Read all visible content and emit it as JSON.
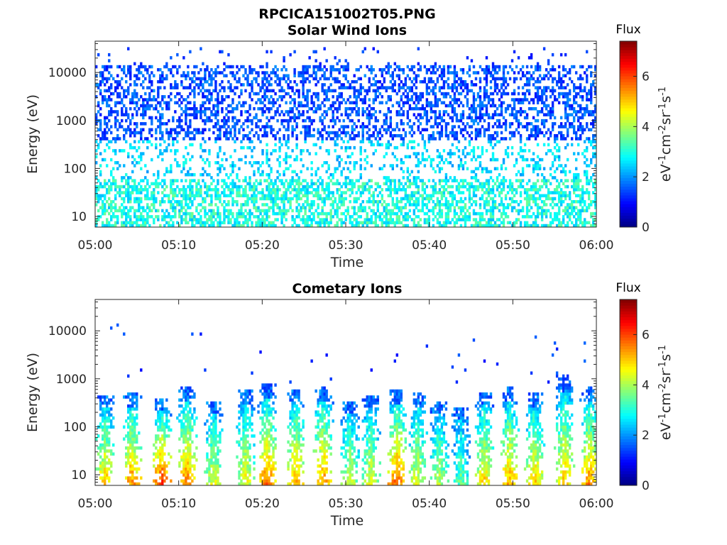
{
  "figure": {
    "filename_title": "RPCICA151002T05.PNG"
  },
  "chart_data": [
    {
      "type": "heatmap",
      "title": "Solar Wind Ions",
      "xlabel": "Time",
      "ylabel": "Energy (eV)",
      "x_ticks": [
        "05:00",
        "05:10",
        "05:20",
        "05:30",
        "05:40",
        "05:50",
        "06:00"
      ],
      "x_range_minutes": [
        0,
        60
      ],
      "y_scale": "log",
      "y_ticks": [
        10,
        100,
        1000,
        10000
      ],
      "y_tick_labels": [
        "10",
        "100",
        "1000",
        "10000"
      ],
      "y_range": [
        6,
        45000
      ],
      "colorbar": {
        "title": "Flux",
        "label": "eV-1cm-2sr-1s-1",
        "min": 0,
        "max": 7.4,
        "ticks": [
          0,
          2,
          4,
          6
        ],
        "tick_labels": [
          "0",
          "2",
          "4",
          "6"
        ],
        "colormap": "jet"
      },
      "description_bands": [
        {
          "energy_range": [
            6,
            60
          ],
          "flux_range": [
            2.3,
            3.6
          ],
          "coverage": 0.55
        },
        {
          "energy_range": [
            60,
            400
          ],
          "flux_range": [
            2.0,
            3.0
          ],
          "coverage": 0.22
        },
        {
          "energy_range": [
            400,
            15000
          ],
          "flux_range": [
            1.0,
            2.0
          ],
          "coverage": 0.42
        },
        {
          "energy_range": [
            15000,
            35000
          ],
          "flux_range": [
            1.0,
            1.6
          ],
          "coverage": 0.04
        }
      ]
    },
    {
      "type": "heatmap",
      "title": "Cometary Ions",
      "xlabel": "Time",
      "ylabel": "Energy (eV)",
      "x_ticks": [
        "05:00",
        "05:10",
        "05:20",
        "05:30",
        "05:40",
        "05:50",
        "06:00"
      ],
      "x_range_minutes": [
        0,
        60
      ],
      "y_scale": "log",
      "y_ticks": [
        10,
        100,
        1000,
        10000
      ],
      "y_tick_labels": [
        "10",
        "100",
        "1000",
        "10000"
      ],
      "y_range": [
        6,
        45000
      ],
      "colorbar": {
        "title": "Flux",
        "label": "eV-1cm-2sr-1s-1",
        "min": 0,
        "max": 7.4,
        "ticks": [
          0,
          2,
          4,
          6
        ],
        "tick_labels": [
          "0",
          "2",
          "4",
          "6"
        ],
        "colormap": "jet"
      },
      "burst_times_minutes": [
        1.2,
        4.4,
        8.0,
        11.0,
        14.2,
        18.0,
        20.6,
        24.0,
        27.3,
        30.5,
        33.0,
        36.2,
        38.6,
        41.2,
        43.8,
        46.6,
        49.6,
        52.6,
        56.2,
        59.2
      ],
      "burst_peak_energy_eV": [
        450,
        500,
        380,
        650,
        350,
        600,
        750,
        620,
        700,
        350,
        450,
        600,
        500,
        350,
        250,
        550,
        650,
        500,
        1200,
        650
      ],
      "burst_peak_flux": [
        5.2,
        5.6,
        6.2,
        5.8,
        4.6,
        4.7,
        5.8,
        5.4,
        5.6,
        4.4,
        4.6,
        6.0,
        4.6,
        4.2,
        3.6,
        5.0,
        5.4,
        5.2,
        5.2,
        5.6
      ]
    }
  ]
}
